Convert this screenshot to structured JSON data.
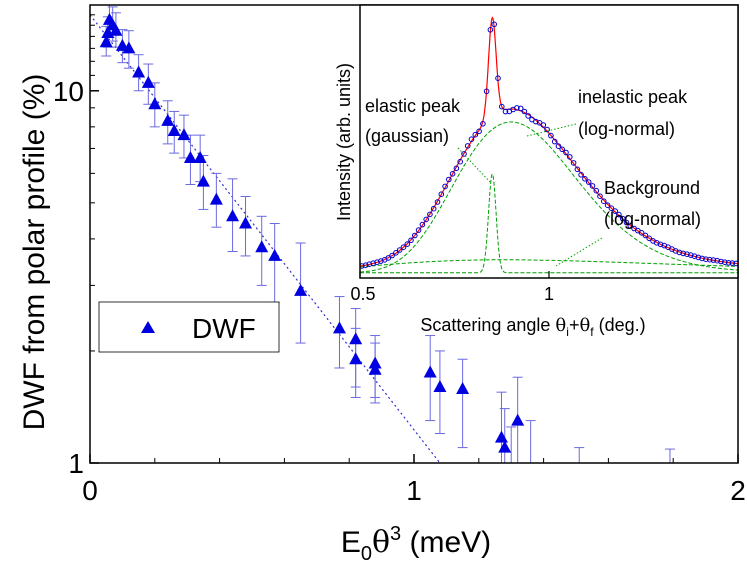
{
  "chart_data": [
    {
      "type": "scatter",
      "xlabel_main": "E",
      "xlabel_sub": "0",
      "xlabel_theta": "θ",
      "xlabel_sup": "3",
      "xlabel_unit": " (meV)",
      "ylabel": "DWF from polar profile (%)",
      "yscale": "log",
      "xlim": [
        0,
        2
      ],
      "ylim": [
        1,
        17
      ],
      "x_ticks": [
        0,
        1,
        2
      ],
      "x_tick_labels": [
        "0",
        "1",
        "2"
      ],
      "y_ticks": [
        1,
        10
      ],
      "y_tick_labels": [
        "1",
        "10"
      ],
      "legend": {
        "label": "DWF",
        "placement": "middle-left"
      },
      "colors": {
        "markers": "#0000e0",
        "errorbars": "#6a6ae0",
        "fit": "#3030d0"
      },
      "series": [
        {
          "name": "DWF",
          "points": [
            {
              "x": 0.05,
              "y": 13.5,
              "lo": 12.4,
              "hi": 14.9
            },
            {
              "x": 0.055,
              "y": 14.3,
              "lo": 13.1,
              "hi": 15.8
            },
            {
              "x": 0.06,
              "y": 15.5,
              "lo": 13.9,
              "hi": 17.6
            },
            {
              "x": 0.07,
              "y": 15.0,
              "lo": 13.6,
              "hi": 16.8
            },
            {
              "x": 0.08,
              "y": 14.5,
              "lo": 13.1,
              "hi": 16.2
            },
            {
              "x": 0.1,
              "y": 13.2,
              "lo": 11.9,
              "hi": 14.6
            },
            {
              "x": 0.12,
              "y": 13.0,
              "lo": 11.5,
              "hi": 14.5
            },
            {
              "x": 0.15,
              "y": 11.2,
              "lo": 10.0,
              "hi": 12.5
            },
            {
              "x": 0.18,
              "y": 10.5,
              "lo": 9.2,
              "hi": 11.8
            },
            {
              "x": 0.2,
              "y": 9.2,
              "lo": 8.0,
              "hi": 10.5
            },
            {
              "x": 0.24,
              "y": 8.3,
              "lo": 7.2,
              "hi": 9.4
            },
            {
              "x": 0.26,
              "y": 7.8,
              "lo": 6.8,
              "hi": 8.8
            },
            {
              "x": 0.29,
              "y": 7.6,
              "lo": 6.6,
              "hi": 8.6
            },
            {
              "x": 0.31,
              "y": 6.6,
              "lo": 5.6,
              "hi": 7.6
            },
            {
              "x": 0.34,
              "y": 6.6,
              "lo": 5.7,
              "hi": 7.6
            },
            {
              "x": 0.35,
              "y": 5.7,
              "lo": 4.8,
              "hi": 6.7
            },
            {
              "x": 0.39,
              "y": 5.1,
              "lo": 4.3,
              "hi": 6.0
            },
            {
              "x": 0.44,
              "y": 4.6,
              "lo": 3.7,
              "hi": 5.8
            },
            {
              "x": 0.48,
              "y": 4.4,
              "lo": 3.6,
              "hi": 5.2
            },
            {
              "x": 0.53,
              "y": 3.8,
              "lo": 3.0,
              "hi": 4.6
            },
            {
              "x": 0.57,
              "y": 3.6,
              "lo": 2.7,
              "hi": 4.4
            },
            {
              "x": 0.65,
              "y": 2.9,
              "lo": 2.1,
              "hi": 3.9
            },
            {
              "x": 0.77,
              "y": 2.3,
              "lo": 1.8,
              "hi": 2.8
            },
            {
              "x": 0.82,
              "y": 2.15,
              "lo": 1.6,
              "hi": 2.6
            },
            {
              "x": 0.82,
              "y": 1.9,
              "lo": 1.5,
              "hi": 2.3
            },
            {
              "x": 0.88,
              "y": 1.85,
              "lo": 1.5,
              "hi": 2.2
            },
            {
              "x": 0.88,
              "y": 1.78,
              "lo": 1.45,
              "hi": 2.1
            },
            {
              "x": 1.05,
              "y": 1.75,
              "lo": 1.3,
              "hi": 2.2
            },
            {
              "x": 1.08,
              "y": 1.6,
              "lo": 1.2,
              "hi": 2.0
            },
            {
              "x": 1.15,
              "y": 1.58,
              "lo": 1.1,
              "hi": 1.9
            },
            {
              "x": 1.27,
              "y": 1.17,
              "lo": 1.0,
              "hi": 1.55
            },
            {
              "x": 1.28,
              "y": 1.1,
              "lo": 1.0,
              "hi": 1.4
            },
            {
              "x": 1.3,
              "y": 1.0,
              "lo": 1.0,
              "hi": 1.25
            },
            {
              "x": 1.32,
              "y": 1.3,
              "lo": 1.0,
              "hi": 1.7
            },
            {
              "x": 1.36,
              "y": 1.0,
              "lo": 1.0,
              "hi": 1.3
            },
            {
              "x": 1.51,
              "y": 1.0,
              "lo": 1.0,
              "hi": 1.1
            },
            {
              "x": 1.79,
              "y": 1.0,
              "lo": 1.0,
              "hi": 1.09
            }
          ]
        },
        {
          "name": "fit",
          "style": "dotted",
          "points": [
            {
              "x": 0,
              "y": 16.0
            },
            {
              "x": 1.08,
              "y": 1.0
            }
          ]
        }
      ]
    },
    {
      "type": "line",
      "position": "inset-top-right",
      "ylabel": "Intensity (arb. units)",
      "xlabel_main": "Scattering angle ",
      "xlabel_theta1": "θ",
      "xlabel_sub1": "i",
      "xlabel_plus": "+",
      "xlabel_theta2": "θ",
      "xlabel_sub2": "f",
      "xlabel_unit": " (deg.)",
      "xlim": [
        0.5,
        1.5
      ],
      "ylim": [
        0,
        1.05
      ],
      "x_ticks": [
        0.5,
        1
      ],
      "x_tick_labels": [
        "0.5",
        "1"
      ],
      "y_ticks_shown": false,
      "annotations": [
        {
          "line1": "elastic peak",
          "line2": "(gaussian)"
        },
        {
          "line1": "inelastic peak",
          "line2": "(log-normal)"
        },
        {
          "line1": "Background",
          "line2": "(log-normal)"
        }
      ],
      "colors": {
        "data": "#0000cc",
        "fit": "#ff0000",
        "components": "#00a000"
      },
      "components": {
        "elastic": {
          "center": 0.85,
          "sigma": 0.01,
          "amplitude": 0.38
        },
        "inelastic": {
          "center": 0.9,
          "sigma": 0.18,
          "amplitude": 0.58
        },
        "background": {
          "center": 0.88,
          "sigma": 0.45,
          "amplitude": 0.05
        },
        "baseline": 0.02
      },
      "series": [
        {
          "name": "data",
          "marker": "open-circle"
        },
        {
          "name": "total fit",
          "line": "solid"
        },
        {
          "name": "components",
          "line": "dashed"
        }
      ]
    }
  ]
}
